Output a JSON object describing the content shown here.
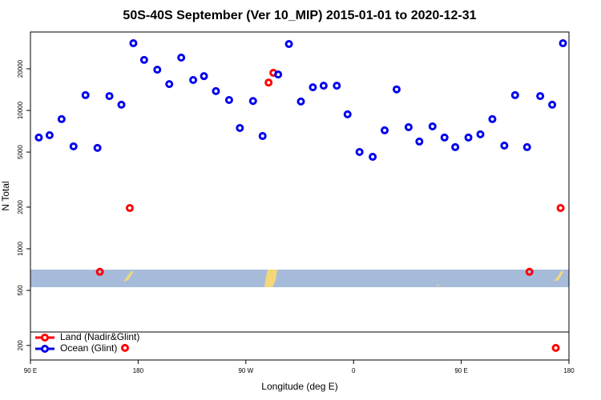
{
  "chart_data": {
    "type": "scatter",
    "title": "50S-40S September (Ver 10_MIP)   2015-01-01 to 2020-12-31",
    "x_label": "Longitude (deg E)",
    "y_label": "N Total",
    "xlim": [
      90,
      540
    ],
    "xticks": [
      {
        "value": 90,
        "label": "90 E"
      },
      {
        "value": 180,
        "label": "180"
      },
      {
        "value": 270,
        "label": "90 W"
      },
      {
        "value": 360,
        "label": "0"
      },
      {
        "value": 450,
        "label": "90 E"
      },
      {
        "value": 540,
        "label": "180"
      }
    ],
    "ylim": [
      157,
      36900
    ],
    "yticks": [
      200,
      500,
      1000,
      2000,
      5000,
      10000,
      20000
    ],
    "log_y": true,
    "legend": "bottom-left",
    "series": [
      {
        "name": "Land (Nadir&Glint)",
        "color": "#ff0000",
        "x": [
          148,
          173,
          289,
          293,
          169,
          507,
          533,
          529
        ],
        "values": [
          681,
          1970,
          15900,
          18700,
          192,
          681,
          1970,
          192
        ]
      },
      {
        "name": "Ocean (Glint)",
        "color": "#0000ee",
        "x": [
          97,
          106,
          116,
          126,
          136,
          146,
          156,
          166,
          176,
          185,
          196,
          206,
          216,
          226,
          235,
          245,
          256,
          265,
          276,
          284,
          297,
          306,
          316,
          326,
          335,
          346,
          355,
          365,
          376,
          386,
          396,
          406,
          415,
          426,
          436,
          445,
          456,
          466,
          476,
          486,
          495,
          505,
          516,
          526,
          535
        ],
        "values": [
          6370,
          6620,
          8650,
          5500,
          12900,
          5360,
          12700,
          11000,
          30600,
          23200,
          19700,
          15500,
          24100,
          16600,
          17700,
          13800,
          11900,
          7470,
          11700,
          6530,
          18200,
          30200,
          11600,
          14700,
          15100,
          15100,
          9380,
          5010,
          4620,
          7180,
          14200,
          7570,
          5960,
          7670,
          6370,
          5430,
          6370,
          6720,
          8650,
          5570,
          12900,
          5430,
          12700,
          11000,
          30600
        ]
      }
    ]
  }
}
